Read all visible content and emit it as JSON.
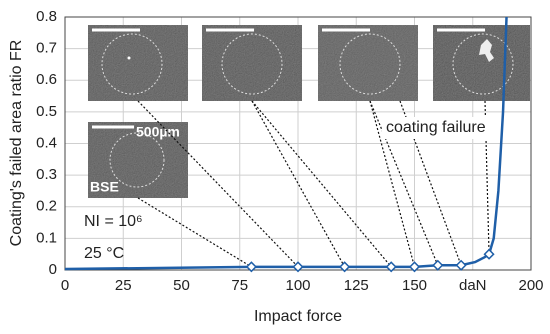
{
  "chart_data": {
    "type": "line",
    "x_label": "Impact force",
    "y_label": "Coating's failed area ratio FR",
    "xlim": [
      0,
      200
    ],
    "ylim": [
      0,
      0.8
    ],
    "xticks": [
      0,
      25,
      50,
      75,
      100,
      125,
      150,
      {
        "value": 175,
        "label": "daN"
      },
      200
    ],
    "yticks": [
      0,
      0.1,
      0.2,
      0.3,
      0.4,
      0.5,
      0.6,
      0.7,
      0.8
    ],
    "grid": true,
    "color": "#1f5fa8",
    "x": [
      0,
      80,
      100,
      120,
      140,
      150,
      160,
      170,
      176,
      180,
      182,
      184,
      186,
      188,
      189.5
    ],
    "values": [
      0.003,
      0.01,
      0.01,
      0.01,
      0.01,
      0.01,
      0.015,
      0.015,
      0.025,
      0.04,
      0.05,
      0.1,
      0.25,
      0.5,
      0.8
    ],
    "points": {
      "x": [
        80,
        100,
        120,
        140,
        150,
        160,
        170,
        182
      ],
      "values": [
        0.01,
        0.01,
        0.01,
        0.01,
        0.01,
        0.015,
        0.015,
        0.05
      ]
    },
    "annotations": {
      "failure": "coating failure",
      "cycles": "NI = 10⁶",
      "temperature": "25 °C",
      "scale": "500µm",
      "detector": "BSE"
    }
  }
}
